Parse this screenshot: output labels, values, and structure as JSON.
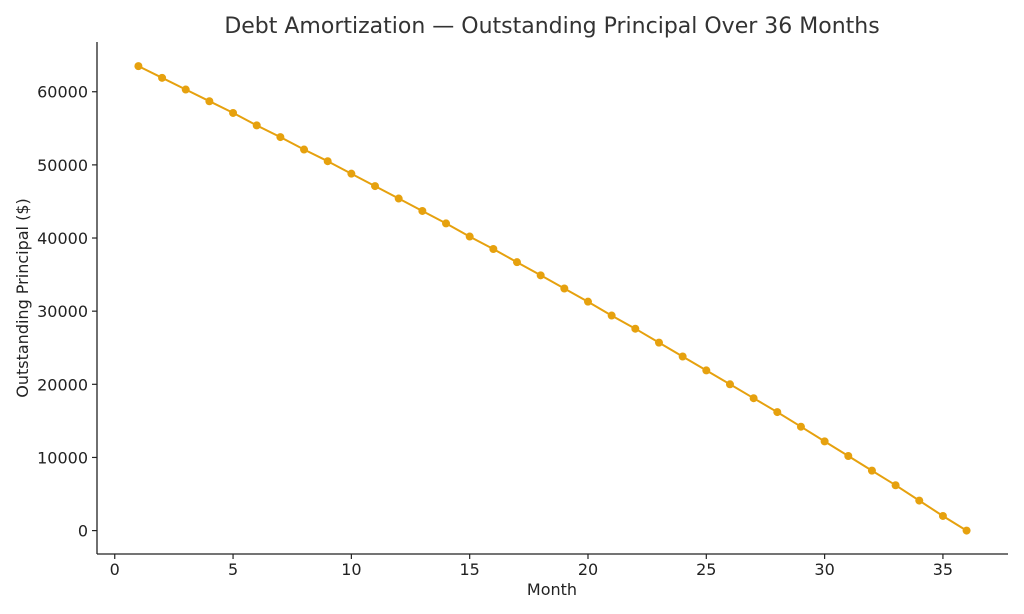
{
  "chart_data": {
    "type": "line",
    "title": "Debt Amortization — Outstanding Principal Over 36 Months",
    "xlabel": "Month",
    "ylabel": "Outstanding Principal ($)",
    "xlim": [
      -0.75,
      37.75
    ],
    "ylim": [
      -3200,
      66800
    ],
    "xticks": [
      0,
      5,
      10,
      15,
      20,
      25,
      30,
      35
    ],
    "yticks": [
      0,
      10000,
      20000,
      30000,
      40000,
      50000,
      60000
    ],
    "grid": false,
    "series": [
      {
        "color": "#E6A10E",
        "x": [
          1,
          2,
          3,
          4,
          5,
          6,
          7,
          8,
          9,
          10,
          11,
          12,
          13,
          14,
          15,
          16,
          17,
          18,
          19,
          20,
          21,
          22,
          23,
          24,
          25,
          26,
          27,
          28,
          29,
          30,
          31,
          32,
          33,
          34,
          35,
          36
        ],
        "y": [
          63500,
          61900,
          60300,
          58700,
          57100,
          55400,
          53800,
          52100,
          50500,
          48800,
          47100,
          45400,
          43700,
          42000,
          40200,
          38500,
          36700,
          34900,
          33100,
          31300,
          29400,
          27600,
          25700,
          23800,
          21900,
          20000,
          18100,
          16200,
          14200,
          12200,
          10200,
          8200,
          6200,
          4100,
          2000,
          0
        ]
      }
    ]
  }
}
